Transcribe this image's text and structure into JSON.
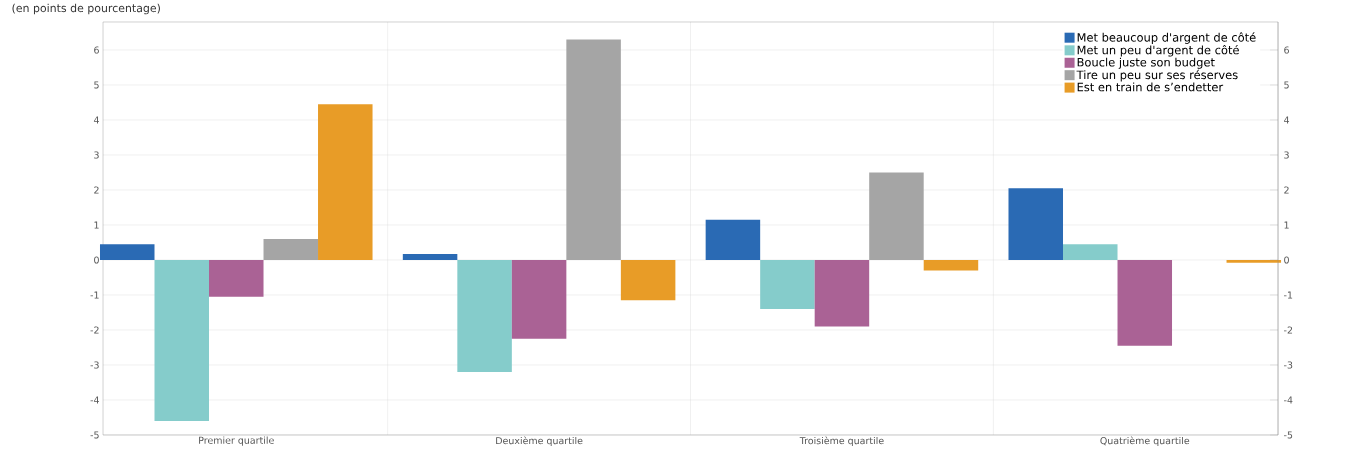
{
  "chart_data": {
    "type": "bar",
    "subtitle": "(en points de pourcentage)",
    "categories": [
      "Premier quartile",
      "Deuxième quartile",
      "Troisième quartile",
      "Quatrième quartile"
    ],
    "series": [
      {
        "name": "Met beaucoup d'argent de côté",
        "color": "#2a6ab4",
        "values": [
          0.45,
          0.17,
          1.15,
          2.05
        ]
      },
      {
        "name": "Met un peu d'argent de côté",
        "color": "#85cccb",
        "values": [
          -4.6,
          -3.2,
          -1.4,
          0.45
        ]
      },
      {
        "name": "Boucle juste son budget",
        "color": "#aa6295",
        "values": [
          -1.05,
          -2.25,
          -1.9,
          -2.45
        ]
      },
      {
        "name": "Tire un peu sur ses réserves",
        "color": "#a5a5a5",
        "values": [
          0.6,
          6.3,
          2.5,
          0.0
        ]
      },
      {
        "name": "Est en train de s’endetter",
        "color": "#e89c27",
        "values": [
          4.45,
          -1.15,
          -0.3,
          -0.08
        ]
      }
    ],
    "ylim": [
      -5,
      6.8
    ],
    "yticks": [
      -5,
      -4,
      -3,
      -2,
      -1,
      0,
      1,
      2,
      3,
      4,
      5,
      6
    ],
    "y2lim": [
      -5,
      6.8
    ],
    "y2ticks": [
      -5,
      -4,
      -3,
      -2,
      -1,
      0,
      1,
      2,
      3,
      4,
      5,
      6
    ],
    "grid": true,
    "legend": "top right"
  }
}
